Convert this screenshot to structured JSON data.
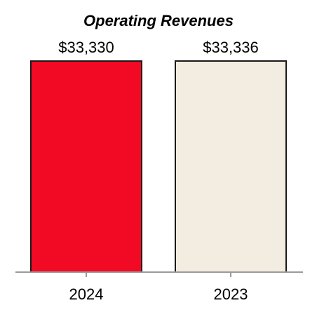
{
  "chart_data": {
    "type": "bar",
    "title": "Operating Revenues",
    "xlabel": "",
    "ylabel": "",
    "categories": [
      "2024",
      "2023"
    ],
    "values": [
      33330,
      33336
    ],
    "value_labels": [
      "$33,330",
      "$33,336"
    ],
    "bar_colors": [
      "#f20a25",
      "#f3ece0"
    ],
    "bar_outline_color": "#1a1a1a",
    "axis_color": "#9a9a9a",
    "ylim": [
      0,
      33336
    ],
    "grid": false,
    "legend": "none"
  }
}
